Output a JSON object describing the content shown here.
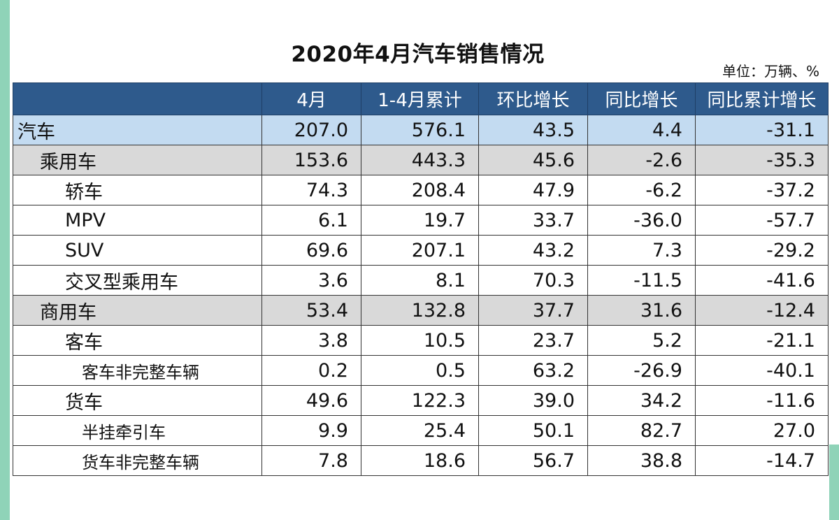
{
  "title": "2020年4月汽车销售情况",
  "unit": "单位：万辆、%",
  "columns": [
    "",
    "4月",
    "1-4月累计",
    "环比增长",
    "同比增长",
    "同比累计增长"
  ],
  "rows": [
    {
      "name": "汽车",
      "level": 0,
      "values": [
        "207.0",
        "576.1",
        "43.5",
        "4.4",
        "-31.1"
      ]
    },
    {
      "name": "乘用车",
      "level": 1,
      "values": [
        "153.6",
        "443.3",
        "45.6",
        "-2.6",
        "-35.3"
      ]
    },
    {
      "name": "轿车",
      "level": 2,
      "values": [
        "74.3",
        "208.4",
        "47.9",
        "-6.2",
        "-37.2"
      ]
    },
    {
      "name": "MPV",
      "level": 2,
      "values": [
        "6.1",
        "19.7",
        "33.7",
        "-36.0",
        "-57.7"
      ]
    },
    {
      "name": "SUV",
      "level": 2,
      "values": [
        "69.6",
        "207.1",
        "43.2",
        "7.3",
        "-29.2"
      ]
    },
    {
      "name": "交叉型乘用车",
      "level": 2,
      "values": [
        "3.6",
        "8.1",
        "70.3",
        "-11.5",
        "-41.6"
      ]
    },
    {
      "name": "商用车",
      "level": 1,
      "values": [
        "53.4",
        "132.8",
        "37.7",
        "31.6",
        "-12.4"
      ]
    },
    {
      "name": "客车",
      "level": 2,
      "values": [
        "3.8",
        "10.5",
        "23.7",
        "5.2",
        "-21.1"
      ]
    },
    {
      "name": "客车非完整车辆",
      "level": 3,
      "values": [
        "0.2",
        "0.5",
        "63.2",
        "-26.9",
        "-40.1"
      ]
    },
    {
      "name": "货车",
      "level": 2,
      "values": [
        "49.6",
        "122.3",
        "39.0",
        "34.2",
        "-11.6"
      ]
    },
    {
      "name": "半挂牵引车",
      "level": 3,
      "values": [
        "9.9",
        "25.4",
        "50.1",
        "82.7",
        "27.0"
      ]
    },
    {
      "name": "货车非完整车辆",
      "level": 3,
      "values": [
        "7.8",
        "18.6",
        "56.7",
        "38.8",
        "-14.7"
      ]
    }
  ],
  "colors": {
    "header_bg": "#2e5a8c",
    "total_row_bg": "#c3dbf1",
    "category_row_bg": "#d9d9d9",
    "edge_accent": "#8fd3b8"
  }
}
